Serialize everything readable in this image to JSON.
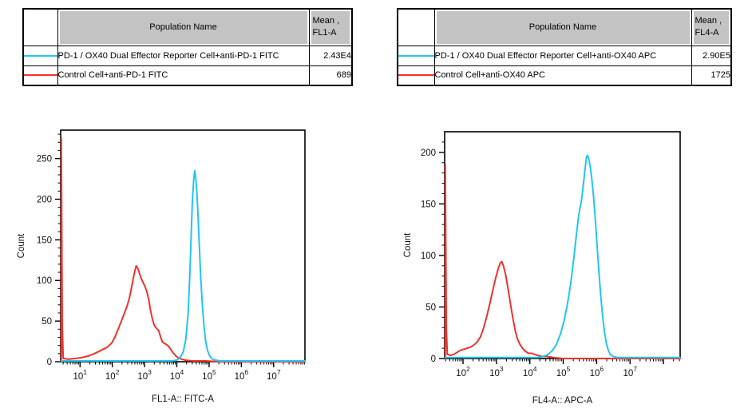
{
  "colors": {
    "cyan": "#22C4F4",
    "red": "#F2312B",
    "table_header_bg": "#C3C3C3"
  },
  "panels": [
    {
      "table": {
        "header": {
          "population": "Population Name",
          "mean_line1": "Mean ,",
          "mean_line2": "FL1-A"
        },
        "rows": [
          {
            "color": "#22C4F4",
            "name": "PD-1 / OX40 Dual Effector Reporter Cell+anti-PD-1 FITC",
            "mean": "2.43E4"
          },
          {
            "color": "#F2312B",
            "name": "Control Cell+anti-PD-1 FITC",
            "mean": "689"
          }
        ]
      }
    },
    {
      "table": {
        "header": {
          "population": "Population Name",
          "mean_line1": "Mean ,",
          "mean_line2": "FL4-A"
        },
        "rows": [
          {
            "color": "#22C4F4",
            "name": "PD-1 / OX40 Dual Effector Reporter Cell+anti-OX40 APC",
            "mean": "2.90E5"
          },
          {
            "color": "#F2312B",
            "name": "Control Cell+anti-OX40 APC",
            "mean": "1725"
          }
        ]
      }
    }
  ],
  "chart_data": [
    {
      "type": "line",
      "subtype": "flow-histogram",
      "title": "",
      "xlabel": "FL1-A:: FITC-A",
      "ylabel": "Count",
      "x_scale": "log10",
      "x_range_log10": [
        0.4,
        7.97
      ],
      "x_major_ticks": [
        1,
        2,
        3,
        4,
        5,
        6,
        7
      ],
      "y_range": [
        0,
        285
      ],
      "y_major_ticks": [
        0,
        50,
        100,
        150,
        200,
        250
      ],
      "y_minor_step": 10,
      "grid": false,
      "legend_position": "table-above",
      "series": [
        {
          "name": "Control Cell+anti-PD-1 FITC",
          "color": "#F2312B",
          "mean": "689",
          "points": [
            [
              0.42,
              0
            ],
            [
              0.42,
              275
            ],
            [
              0.45,
              45
            ],
            [
              0.48,
              4
            ],
            [
              0.65,
              3
            ],
            [
              0.85,
              4
            ],
            [
              1.05,
              5
            ],
            [
              1.25,
              7
            ],
            [
              1.45,
              10
            ],
            [
              1.65,
              14
            ],
            [
              1.85,
              18
            ],
            [
              1.98,
              23
            ],
            [
              2.08,
              30
            ],
            [
              2.18,
              40
            ],
            [
              2.28,
              50
            ],
            [
              2.38,
              60
            ],
            [
              2.47,
              70
            ],
            [
              2.54,
              80
            ],
            [
              2.6,
              92
            ],
            [
              2.65,
              103
            ],
            [
              2.7,
              112
            ],
            [
              2.74,
              118
            ],
            [
              2.79,
              115
            ],
            [
              2.84,
              109
            ],
            [
              2.9,
              102
            ],
            [
              2.96,
              97
            ],
            [
              3.02,
              92
            ],
            [
              3.08,
              85
            ],
            [
              3.13,
              76
            ],
            [
              3.18,
              64
            ],
            [
              3.24,
              53
            ],
            [
              3.3,
              45
            ],
            [
              3.37,
              41
            ],
            [
              3.44,
              38
            ],
            [
              3.5,
              30
            ],
            [
              3.56,
              24
            ],
            [
              3.64,
              22
            ],
            [
              3.72,
              20
            ],
            [
              3.8,
              16
            ],
            [
              3.88,
              11
            ],
            [
              3.97,
              7
            ],
            [
              4.08,
              4
            ],
            [
              4.25,
              2
            ],
            [
              4.5,
              1
            ],
            [
              4.9,
              1
            ],
            [
              5.3,
              0
            ],
            [
              7.97,
              0
            ]
          ]
        },
        {
          "name": "PD-1 / OX40 Dual Effector Reporter Cell+anti-PD-1 FITC",
          "color": "#22C4F4",
          "mean": "2.43E4",
          "points": [
            [
              0.42,
              1
            ],
            [
              3.85,
              1
            ],
            [
              4.0,
              2
            ],
            [
              4.1,
              5
            ],
            [
              4.2,
              12
            ],
            [
              4.28,
              28
            ],
            [
              4.35,
              60
            ],
            [
              4.4,
              105
            ],
            [
              4.44,
              150
            ],
            [
              4.48,
              196
            ],
            [
              4.52,
              222
            ],
            [
              4.55,
              235
            ],
            [
              4.58,
              229
            ],
            [
              4.62,
              209
            ],
            [
              4.66,
              177
            ],
            [
              4.7,
              140
            ],
            [
              4.74,
              104
            ],
            [
              4.79,
              70
            ],
            [
              4.84,
              44
            ],
            [
              4.89,
              26
            ],
            [
              4.95,
              14
            ],
            [
              5.02,
              7
            ],
            [
              5.1,
              3
            ],
            [
              5.2,
              2
            ],
            [
              5.35,
              1
            ],
            [
              7.97,
              1
            ]
          ]
        }
      ]
    },
    {
      "type": "line",
      "subtype": "flow-histogram",
      "title": "",
      "xlabel": "FL4-A:: APC-A",
      "ylabel": "Count",
      "x_scale": "log10",
      "x_range_log10": [
        1.45,
        8.5
      ],
      "x_major_ticks": [
        2,
        3,
        4,
        5,
        6,
        7
      ],
      "y_range": [
        0,
        220
      ],
      "y_major_ticks": [
        0,
        50,
        100,
        150,
        200
      ],
      "y_minor_step": 10,
      "grid": false,
      "legend_position": "table-above",
      "series": [
        {
          "name": "Control Cell+anti-OX40 APC",
          "color": "#F2312B",
          "mean": "1725",
          "points": [
            [
              1.47,
              0
            ],
            [
              1.47,
              188
            ],
            [
              1.5,
              30
            ],
            [
              1.53,
              4
            ],
            [
              1.62,
              3
            ],
            [
              1.72,
              4
            ],
            [
              1.82,
              6
            ],
            [
              1.92,
              8
            ],
            [
              2.02,
              9
            ],
            [
              2.12,
              10
            ],
            [
              2.22,
              11
            ],
            [
              2.32,
              13
            ],
            [
              2.42,
              16
            ],
            [
              2.52,
              21
            ],
            [
              2.62,
              30
            ],
            [
              2.72,
              42
            ],
            [
              2.8,
              53
            ],
            [
              2.87,
              63
            ],
            [
              2.94,
              73
            ],
            [
              3.0,
              81
            ],
            [
              3.06,
              88
            ],
            [
              3.12,
              93
            ],
            [
              3.16,
              94
            ],
            [
              3.21,
              90
            ],
            [
              3.27,
              82
            ],
            [
              3.33,
              71
            ],
            [
              3.39,
              59
            ],
            [
              3.45,
              47
            ],
            [
              3.51,
              36
            ],
            [
              3.57,
              26
            ],
            [
              3.63,
              19
            ],
            [
              3.7,
              14
            ],
            [
              3.78,
              10
            ],
            [
              3.87,
              7
            ],
            [
              3.96,
              5
            ],
            [
              4.06,
              5
            ],
            [
              4.14,
              4
            ],
            [
              4.24,
              3
            ],
            [
              4.36,
              2
            ],
            [
              4.5,
              2
            ],
            [
              4.7,
              1
            ],
            [
              5.0,
              0
            ],
            [
              8.5,
              0
            ]
          ]
        },
        {
          "name": "PD-1 / OX40 Dual Effector Reporter Cell+anti-OX40 APC",
          "color": "#22C4F4",
          "mean": "2.90E5",
          "points": [
            [
              1.47,
              1
            ],
            [
              4.25,
              1
            ],
            [
              4.4,
              2
            ],
            [
              4.55,
              4
            ],
            [
              4.68,
              8
            ],
            [
              4.8,
              14
            ],
            [
              4.92,
              24
            ],
            [
              5.02,
              36
            ],
            [
              5.12,
              52
            ],
            [
              5.22,
              72
            ],
            [
              5.32,
              98
            ],
            [
              5.4,
              122
            ],
            [
              5.46,
              138
            ],
            [
              5.5,
              146
            ],
            [
              5.54,
              152
            ],
            [
              5.58,
              162
            ],
            [
              5.62,
              174
            ],
            [
              5.66,
              186
            ],
            [
              5.7,
              196
            ],
            [
              5.73,
              197
            ],
            [
              5.77,
              193
            ],
            [
              5.81,
              186
            ],
            [
              5.85,
              176
            ],
            [
              5.9,
              160
            ],
            [
              5.95,
              140
            ],
            [
              6.0,
              116
            ],
            [
              6.05,
              92
            ],
            [
              6.11,
              66
            ],
            [
              6.17,
              44
            ],
            [
              6.23,
              27
            ],
            [
              6.29,
              15
            ],
            [
              6.35,
              8
            ],
            [
              6.41,
              4
            ],
            [
              6.49,
              2
            ],
            [
              6.62,
              1
            ],
            [
              8.5,
              1
            ]
          ]
        }
      ]
    }
  ]
}
